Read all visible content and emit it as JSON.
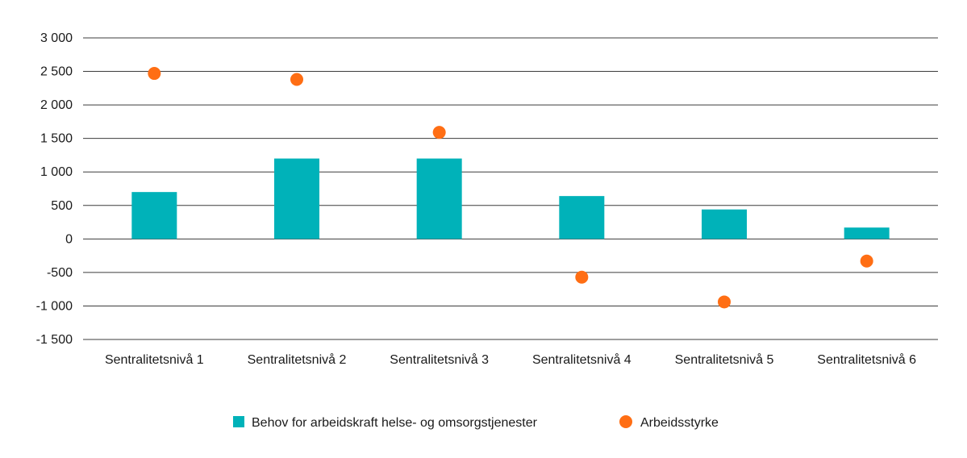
{
  "chart_data": {
    "type": "bar",
    "categories": [
      "Sentralitetsnivå 1",
      "Sentralitetsnivå 2",
      "Sentralitetsnivå 3",
      "Sentralitetsnivå 4",
      "Sentralitetsnivå 5",
      "Sentralitetsnivå 6"
    ],
    "series": [
      {
        "name": "Behov for arbeidskraft helse- og omsorgstjenester",
        "type": "bar",
        "color": "#00b2b9",
        "values": [
          700,
          1200,
          1200,
          640,
          440,
          170
        ]
      },
      {
        "name": "Arbeidsstyrke",
        "type": "scatter",
        "color": "#ff6e14",
        "values": [
          2470,
          2380,
          1590,
          -570,
          -940,
          -330
        ]
      }
    ],
    "title": "",
    "xlabel": "",
    "ylabel": "",
    "ylim": [
      -1500,
      3000
    ],
    "yticks": [
      3000,
      2500,
      2000,
      1500,
      1000,
      500,
      0,
      -500,
      -1000,
      -1500
    ],
    "ytick_labels": [
      "3 000",
      "2 500",
      "2 000",
      "1 500",
      "1 000",
      "500",
      "0",
      "-500",
      "-1 000",
      "-1 500"
    ],
    "grid": true,
    "legend_position": "bottom-center"
  }
}
